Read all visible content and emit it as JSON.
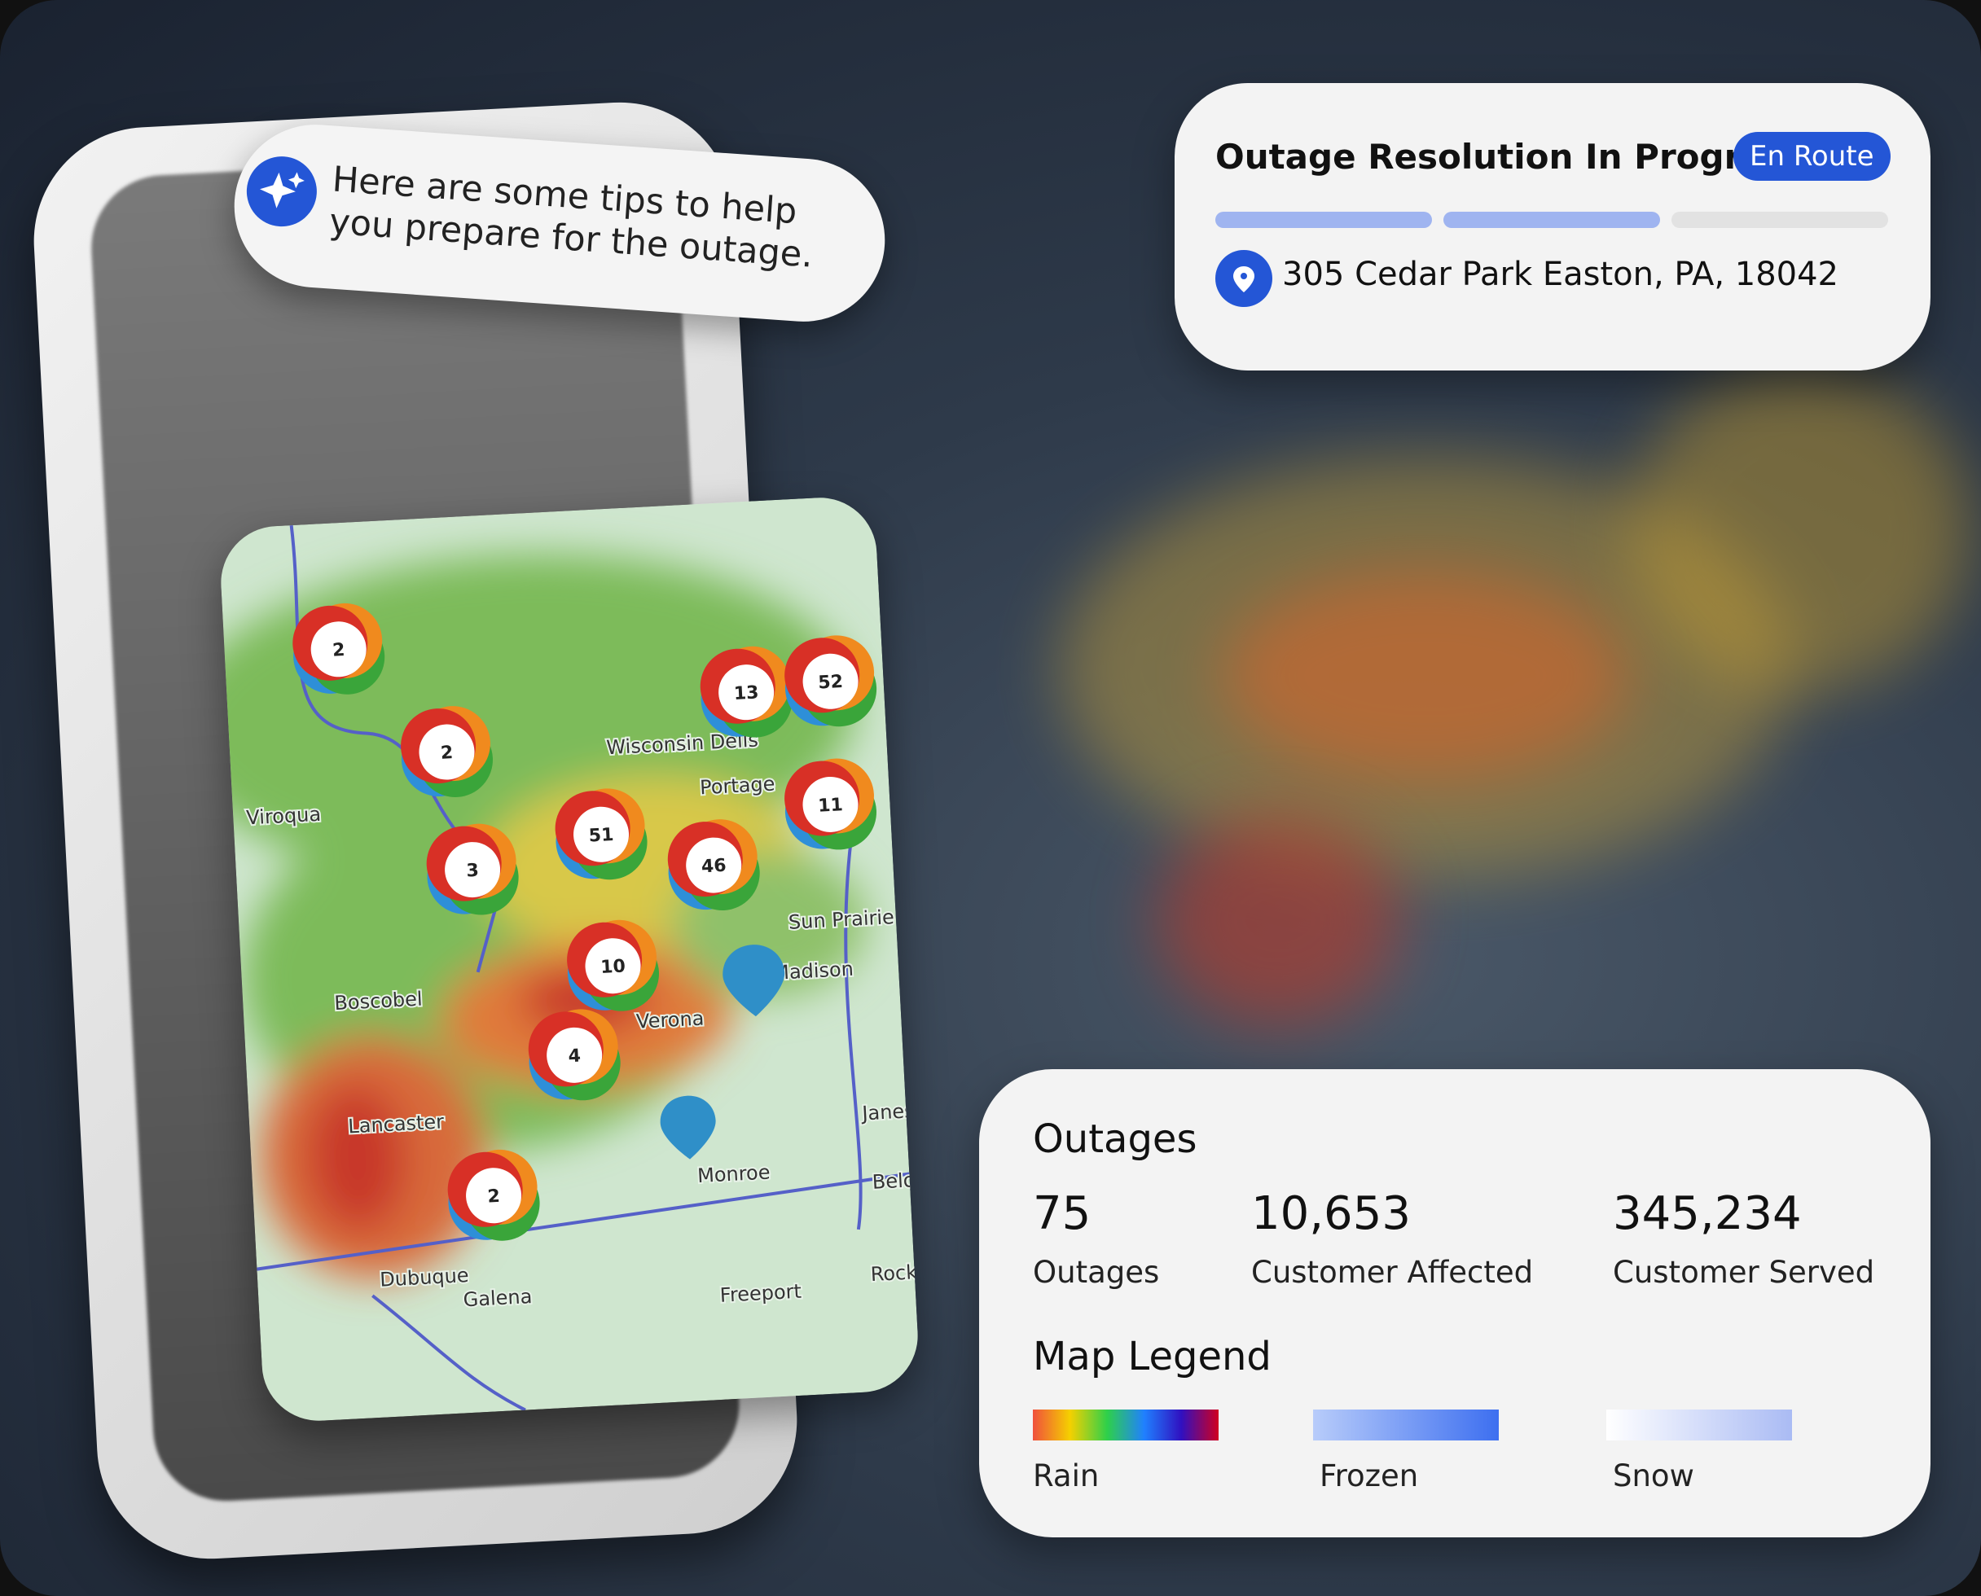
{
  "chat": {
    "message": "Here are some tips to help you prepare for the outage."
  },
  "status_card": {
    "title": "Outage Resolution In Progress",
    "badge": "En Route",
    "address": "305 Cedar Park Easton, PA, 18042"
  },
  "outages_card": {
    "title": "Outages",
    "stats": [
      {
        "value": "75",
        "label": "Outages"
      },
      {
        "value": "10,653",
        "label": "Customer Affected"
      },
      {
        "value": "345,234",
        "label": "Customer Served"
      }
    ]
  },
  "legend": {
    "title": "Map Legend",
    "items": [
      "Rain",
      "Frozen",
      "Snow"
    ]
  },
  "map": {
    "labels": [
      "Viroqua",
      "Wisconsin Dells",
      "Portage",
      "Boscobel",
      "Lancaster",
      "Galena",
      "Freeport",
      "Rockford",
      "Monroe",
      "Madison",
      "Verona",
      "Janesville",
      "Beloit",
      "Dubuque",
      "Sun Prairie"
    ],
    "clusters": [
      "2",
      "2",
      "3",
      "51",
      "46",
      "13",
      "52",
      "11",
      "10",
      "4",
      "2"
    ]
  }
}
